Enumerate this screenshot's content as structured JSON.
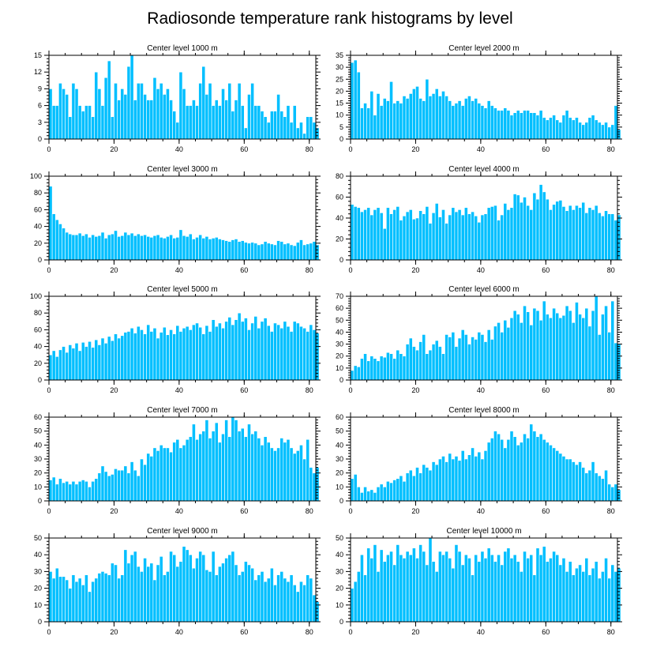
{
  "title": "Radiosonde temperature rank histograms by level",
  "colors": {
    "bar": "#00bfff",
    "frame": "#000000",
    "background": "#ffffff"
  },
  "chart_data": [
    {
      "type": "bar",
      "title": "Center level 1000 m",
      "xlabel": "",
      "ylabel": "",
      "xlim": [
        0,
        82
      ],
      "ylim": [
        0,
        15
      ],
      "xticks": [
        0,
        20,
        40,
        60,
        80
      ],
      "yticks": [
        0,
        3,
        6,
        9,
        12,
        15
      ],
      "values": [
        9,
        6,
        6,
        10,
        9,
        8,
        4,
        10,
        9,
        6,
        5,
        6,
        6,
        4,
        12,
        9,
        6,
        11,
        14,
        4,
        10,
        7,
        9,
        8,
        13,
        15,
        7,
        10,
        10,
        8,
        7,
        7,
        11,
        9,
        10,
        8,
        9,
        7,
        5,
        3,
        12,
        9,
        6,
        6,
        7,
        6,
        10,
        13,
        8,
        10,
        6,
        7,
        6,
        9,
        7,
        10,
        5,
        7,
        10,
        6,
        2,
        8,
        10,
        6,
        6,
        5,
        4,
        3,
        5,
        5,
        8,
        5,
        4,
        6,
        3,
        6,
        2,
        3,
        1,
        4,
        4,
        3,
        2
      ]
    },
    {
      "type": "bar",
      "title": "Center level 2000 m",
      "xlabel": "",
      "ylabel": "",
      "xlim": [
        0,
        82
      ],
      "ylim": [
        0,
        35
      ],
      "xticks": [
        0,
        20,
        40,
        60,
        80
      ],
      "yticks": [
        0,
        5,
        10,
        15,
        20,
        25,
        30,
        35
      ],
      "values": [
        32,
        33,
        28,
        13,
        15,
        13,
        20,
        10,
        19,
        14,
        17,
        16,
        24,
        15,
        16,
        15,
        18,
        17,
        19,
        21,
        22,
        17,
        16,
        25,
        18,
        19,
        21,
        18,
        20,
        18,
        16,
        14,
        15,
        16,
        14,
        17,
        18,
        16,
        17,
        15,
        14,
        13,
        16,
        14,
        13,
        12,
        12,
        13,
        12,
        10,
        11,
        12,
        11,
        12,
        12,
        11,
        11,
        10,
        12,
        9,
        8,
        9,
        10,
        8,
        7,
        10,
        12,
        9,
        8,
        9,
        7,
        6,
        7,
        9,
        10,
        8,
        7,
        6,
        7,
        5,
        6,
        14,
        4
      ]
    },
    {
      "type": "bar",
      "title": "Center level 3000 m",
      "xlabel": "",
      "ylabel": "",
      "xlim": [
        0,
        82
      ],
      "ylim": [
        0,
        100
      ],
      "xticks": [
        0,
        20,
        40,
        60,
        80
      ],
      "yticks": [
        0,
        20,
        40,
        60,
        80,
        100
      ],
      "values": [
        88,
        55,
        48,
        43,
        38,
        33,
        31,
        30,
        30,
        32,
        29,
        31,
        27,
        30,
        28,
        29,
        33,
        26,
        30,
        31,
        35,
        28,
        29,
        33,
        30,
        32,
        29,
        31,
        29,
        30,
        28,
        27,
        29,
        30,
        27,
        26,
        28,
        30,
        26,
        27,
        36,
        29,
        28,
        31,
        25,
        27,
        30,
        26,
        28,
        25,
        26,
        27,
        25,
        24,
        23,
        22,
        24,
        25,
        22,
        23,
        21,
        20,
        21,
        20,
        18,
        19,
        22,
        20,
        19,
        18,
        23,
        22,
        19,
        20,
        18,
        17,
        21,
        24,
        18,
        19,
        20,
        22,
        18
      ]
    },
    {
      "type": "bar",
      "title": "Center level 4000 m",
      "xlabel": "",
      "ylabel": "",
      "xlim": [
        0,
        82
      ],
      "ylim": [
        0,
        80
      ],
      "xticks": [
        0,
        20,
        40,
        60,
        80
      ],
      "yticks": [
        0,
        20,
        40,
        60,
        80
      ],
      "values": [
        53,
        51,
        50,
        46,
        48,
        50,
        43,
        48,
        50,
        45,
        30,
        50,
        44,
        48,
        51,
        38,
        42,
        46,
        48,
        39,
        40,
        47,
        44,
        51,
        35,
        45,
        54,
        41,
        48,
        35,
        43,
        50,
        46,
        48,
        43,
        50,
        44,
        46,
        42,
        36,
        43,
        44,
        50,
        51,
        52,
        38,
        43,
        54,
        48,
        50,
        63,
        62,
        55,
        60,
        52,
        48,
        64,
        58,
        72,
        65,
        58,
        48,
        53,
        56,
        57,
        51,
        47,
        52,
        48,
        52,
        50,
        55,
        45,
        50,
        48,
        52,
        45,
        42,
        47,
        44,
        44,
        38,
        43
      ]
    },
    {
      "type": "bar",
      "title": "Center level 5000 m",
      "xlabel": "",
      "ylabel": "",
      "xlim": [
        0,
        82
      ],
      "ylim": [
        0,
        100
      ],
      "xticks": [
        0,
        20,
        40,
        60,
        80
      ],
      "yticks": [
        0,
        20,
        40,
        60,
        80,
        100
      ],
      "values": [
        30,
        35,
        28,
        36,
        40,
        33,
        42,
        38,
        44,
        35,
        45,
        40,
        46,
        39,
        48,
        42,
        50,
        44,
        52,
        47,
        55,
        50,
        53,
        57,
        58,
        62,
        56,
        64,
        60,
        55,
        66,
        58,
        62,
        50,
        57,
        63,
        54,
        60,
        55,
        65,
        58,
        62,
        64,
        60,
        66,
        68,
        63,
        55,
        65,
        58,
        72,
        64,
        68,
        62,
        70,
        75,
        66,
        72,
        80,
        70,
        74,
        60,
        68,
        76,
        62,
        70,
        74,
        65,
        58,
        68,
        66,
        62,
        70,
        64,
        58,
        70,
        68,
        64,
        62,
        58,
        66,
        60,
        56
      ]
    },
    {
      "type": "bar",
      "title": "Center level 6000 m",
      "xlabel": "",
      "ylabel": "",
      "xlim": [
        0,
        82
      ],
      "ylim": [
        0,
        70
      ],
      "xticks": [
        0,
        20,
        40,
        60,
        80
      ],
      "yticks": [
        0,
        10,
        20,
        30,
        40,
        50,
        60,
        70
      ],
      "values": [
        8,
        12,
        11,
        18,
        22,
        16,
        20,
        18,
        16,
        20,
        19,
        23,
        22,
        18,
        25,
        22,
        20,
        30,
        35,
        28,
        25,
        32,
        38,
        22,
        25,
        30,
        33,
        28,
        22,
        38,
        36,
        40,
        28,
        35,
        42,
        38,
        30,
        36,
        34,
        40,
        38,
        32,
        42,
        34,
        45,
        48,
        40,
        50,
        44,
        52,
        58,
        55,
        48,
        62,
        57,
        46,
        60,
        58,
        50,
        66,
        55,
        52,
        60,
        56,
        52,
        54,
        62,
        58,
        48,
        65,
        55,
        52,
        60,
        45,
        58,
        70,
        38,
        55,
        62,
        40,
        66,
        31,
        30
      ]
    },
    {
      "type": "bar",
      "title": "Center level 7000 m",
      "xlabel": "",
      "ylabel": "",
      "xlim": [
        0,
        82
      ],
      "ylim": [
        0,
        60
      ],
      "xticks": [
        0,
        20,
        40,
        60,
        80
      ],
      "yticks": [
        0,
        10,
        20,
        30,
        40,
        50,
        60
      ],
      "values": [
        15,
        17,
        12,
        16,
        13,
        14,
        12,
        14,
        12,
        14,
        15,
        14,
        10,
        14,
        16,
        20,
        25,
        21,
        18,
        19,
        23,
        22,
        22,
        25,
        20,
        28,
        22,
        18,
        30,
        26,
        34,
        32,
        38,
        36,
        40,
        38,
        38,
        35,
        42,
        44,
        38,
        40,
        44,
        46,
        55,
        44,
        48,
        50,
        58,
        45,
        50,
        56,
        42,
        48,
        58,
        46,
        60,
        58,
        50,
        52,
        46,
        55,
        48,
        50,
        45,
        40,
        46,
        42,
        38,
        36,
        38,
        45,
        42,
        44,
        38,
        34,
        36,
        40,
        30,
        44,
        24,
        20,
        24
      ]
    },
    {
      "type": "bar",
      "title": "Center level 8000 m",
      "xlabel": "",
      "ylabel": "",
      "xlim": [
        0,
        82
      ],
      "ylim": [
        0,
        60
      ],
      "xticks": [
        0,
        20,
        40,
        60,
        80
      ],
      "yticks": [
        0,
        10,
        20,
        30,
        40,
        50,
        60
      ],
      "values": [
        16,
        19,
        10,
        6,
        10,
        7,
        8,
        6,
        10,
        12,
        10,
        14,
        13,
        15,
        16,
        18,
        14,
        20,
        22,
        18,
        24,
        20,
        26,
        24,
        22,
        28,
        26,
        30,
        32,
        28,
        34,
        30,
        32,
        29,
        36,
        30,
        33,
        38,
        32,
        35,
        30,
        36,
        42,
        45,
        50,
        48,
        44,
        38,
        44,
        50,
        46,
        40,
        42,
        48,
        45,
        55,
        50,
        46,
        48,
        44,
        42,
        40,
        38,
        36,
        34,
        32,
        30,
        30,
        28,
        26,
        28,
        24,
        20,
        22,
        28,
        20,
        18,
        16,
        22,
        12,
        10,
        12,
        8
      ]
    },
    {
      "type": "bar",
      "title": "Center level 9000 m",
      "xlabel": "",
      "ylabel": "",
      "xlim": [
        0,
        82
      ],
      "ylim": [
        0,
        50
      ],
      "xticks": [
        0,
        20,
        40,
        60,
        80
      ],
      "yticks": [
        0,
        10,
        20,
        30,
        40,
        50
      ],
      "values": [
        30,
        26,
        32,
        27,
        27,
        25,
        20,
        28,
        24,
        26,
        22,
        28,
        18,
        24,
        26,
        29,
        30,
        29,
        28,
        35,
        34,
        26,
        28,
        43,
        35,
        40,
        42,
        33,
        30,
        38,
        33,
        35,
        25,
        34,
        39,
        28,
        30,
        42,
        40,
        33,
        36,
        45,
        43,
        40,
        32,
        38,
        42,
        40,
        31,
        30,
        42,
        28,
        33,
        35,
        38,
        40,
        42,
        34,
        28,
        30,
        36,
        34,
        32,
        25,
        28,
        30,
        24,
        26,
        32,
        22,
        28,
        30,
        26,
        24,
        28,
        22,
        18,
        24,
        22,
        28,
        26,
        16,
        12
      ]
    },
    {
      "type": "bar",
      "title": "Center level 10000 m",
      "xlabel": "",
      "ylabel": "",
      "xlim": [
        0,
        82
      ],
      "ylim": [
        0,
        50
      ],
      "xticks": [
        0,
        20,
        40,
        60,
        80
      ],
      "yticks": [
        0,
        10,
        20,
        30,
        40,
        50
      ],
      "values": [
        20,
        24,
        30,
        40,
        28,
        44,
        38,
        46,
        30,
        43,
        36,
        40,
        42,
        34,
        46,
        40,
        38,
        42,
        40,
        44,
        38,
        46,
        42,
        34,
        50,
        36,
        30,
        42,
        40,
        42,
        38,
        32,
        46,
        42,
        34,
        40,
        38,
        28,
        40,
        36,
        42,
        38,
        44,
        40,
        36,
        40,
        34,
        42,
        44,
        38,
        40,
        36,
        30,
        42,
        38,
        40,
        28,
        44,
        40,
        45,
        36,
        38,
        42,
        40,
        34,
        38,
        30,
        36,
        28,
        32,
        34,
        30,
        38,
        28,
        32,
        36,
        26,
        30,
        38,
        26,
        34,
        30,
        32
      ]
    }
  ]
}
